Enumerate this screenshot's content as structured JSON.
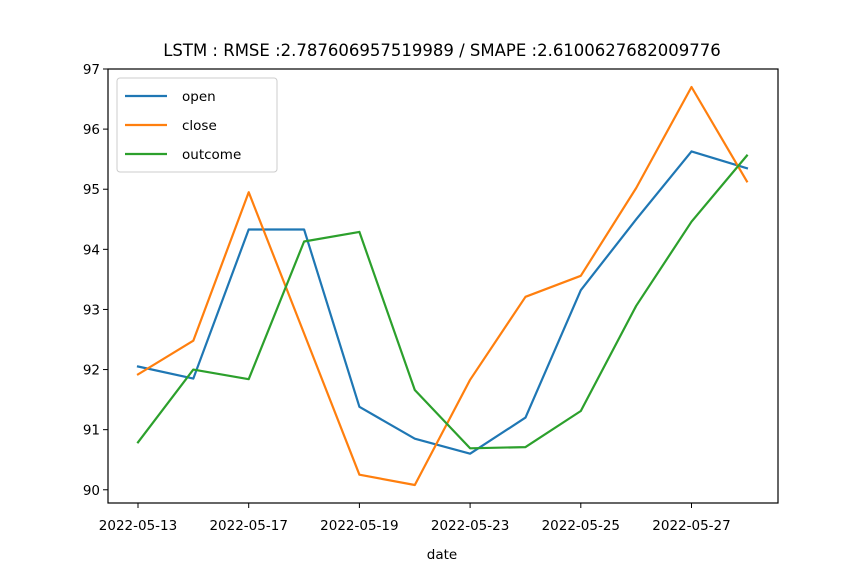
{
  "chart_data": {
    "type": "line",
    "title": "LSTM : RMSE :2.787606957519989 / SMAPE :2.6100627682009776",
    "xlabel": "date",
    "ylabel": "",
    "x_tick_labels": [
      "2022-05-13",
      "2022-05-17",
      "2022-05-19",
      "2022-05-23",
      "2022-05-25",
      "2022-05-27"
    ],
    "y_tick_labels": [
      "90",
      "91",
      "92",
      "93",
      "94",
      "95",
      "96",
      "97"
    ],
    "y_ticks": [
      90,
      91,
      92,
      93,
      94,
      95,
      96,
      97
    ],
    "ylim": [
      89.78,
      97.0
    ],
    "x_points": 12,
    "grid": false,
    "legend_placement": "upper-left",
    "series": [
      {
        "name": "open",
        "color": "#1f77b4",
        "values": [
          92.05,
          91.85,
          94.33,
          94.33,
          91.38,
          90.85,
          90.6,
          91.2,
          93.32,
          94.5,
          95.63,
          95.35
        ]
      },
      {
        "name": "close",
        "color": "#ff7f0e",
        "values": [
          91.92,
          92.48,
          94.95,
          92.6,
          90.25,
          90.08,
          91.83,
          93.21,
          93.56,
          95.02,
          96.7,
          95.13
        ]
      },
      {
        "name": "outcome",
        "color": "#2ca02c",
        "values": [
          90.79,
          92.0,
          91.84,
          94.13,
          94.29,
          91.66,
          90.69,
          90.71,
          91.31,
          93.06,
          94.46,
          95.56
        ]
      }
    ]
  }
}
